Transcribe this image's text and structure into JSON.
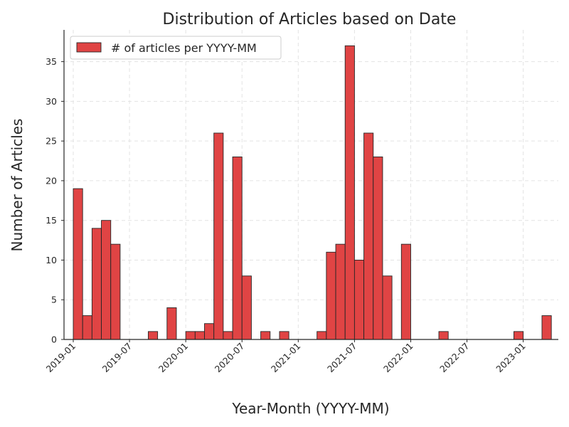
{
  "chart_data": {
    "type": "bar",
    "title": "Distribution of Articles based on Date",
    "xlabel": "Year-Month (YYYY-MM)",
    "ylabel": "Number of Articles",
    "categories": [
      "2019-01",
      "2019-02",
      "2019-03",
      "2019-04",
      "2019-05",
      "2019-06",
      "2019-07",
      "2019-08",
      "2019-09",
      "2019-10",
      "2019-11",
      "2019-12",
      "2020-01",
      "2020-02",
      "2020-03",
      "2020-04",
      "2020-05",
      "2020-06",
      "2020-07",
      "2020-08",
      "2020-09",
      "2020-10",
      "2020-11",
      "2020-12",
      "2021-01",
      "2021-02",
      "2021-03",
      "2021-04",
      "2021-05",
      "2021-06",
      "2021-07",
      "2021-08",
      "2021-09",
      "2021-10",
      "2021-11",
      "2021-12",
      "2022-01",
      "2022-02",
      "2022-03",
      "2022-04",
      "2022-05",
      "2022-06",
      "2022-07",
      "2022-08",
      "2022-09",
      "2022-10",
      "2022-11",
      "2022-12",
      "2023-01",
      "2023-02",
      "2023-03"
    ],
    "series": [
      {
        "name": "# of articles per YYYY-MM",
        "values": [
          19,
          3,
          14,
          15,
          12,
          0,
          0,
          0,
          1,
          0,
          4,
          0,
          1,
          1,
          2,
          26,
          1,
          23,
          8,
          0,
          1,
          0,
          1,
          0,
          0,
          0,
          1,
          11,
          12,
          37,
          10,
          26,
          23,
          8,
          0,
          12,
          0,
          0,
          0,
          1,
          0,
          0,
          0,
          0,
          0,
          0,
          0,
          1,
          0,
          0,
          3
        ]
      }
    ],
    "xticks": [
      "2019-01",
      "2019-07",
      "2020-01",
      "2020-07",
      "2021-01",
      "2021-07",
      "2022-01",
      "2022-07",
      "2023-01"
    ],
    "yticks": [
      0,
      5,
      10,
      15,
      20,
      25,
      30,
      35
    ],
    "ylim": [
      0,
      39
    ],
    "grid": true,
    "legend_position": "top-left",
    "bar_color": "#e04444",
    "edge_color": "#262626"
  }
}
